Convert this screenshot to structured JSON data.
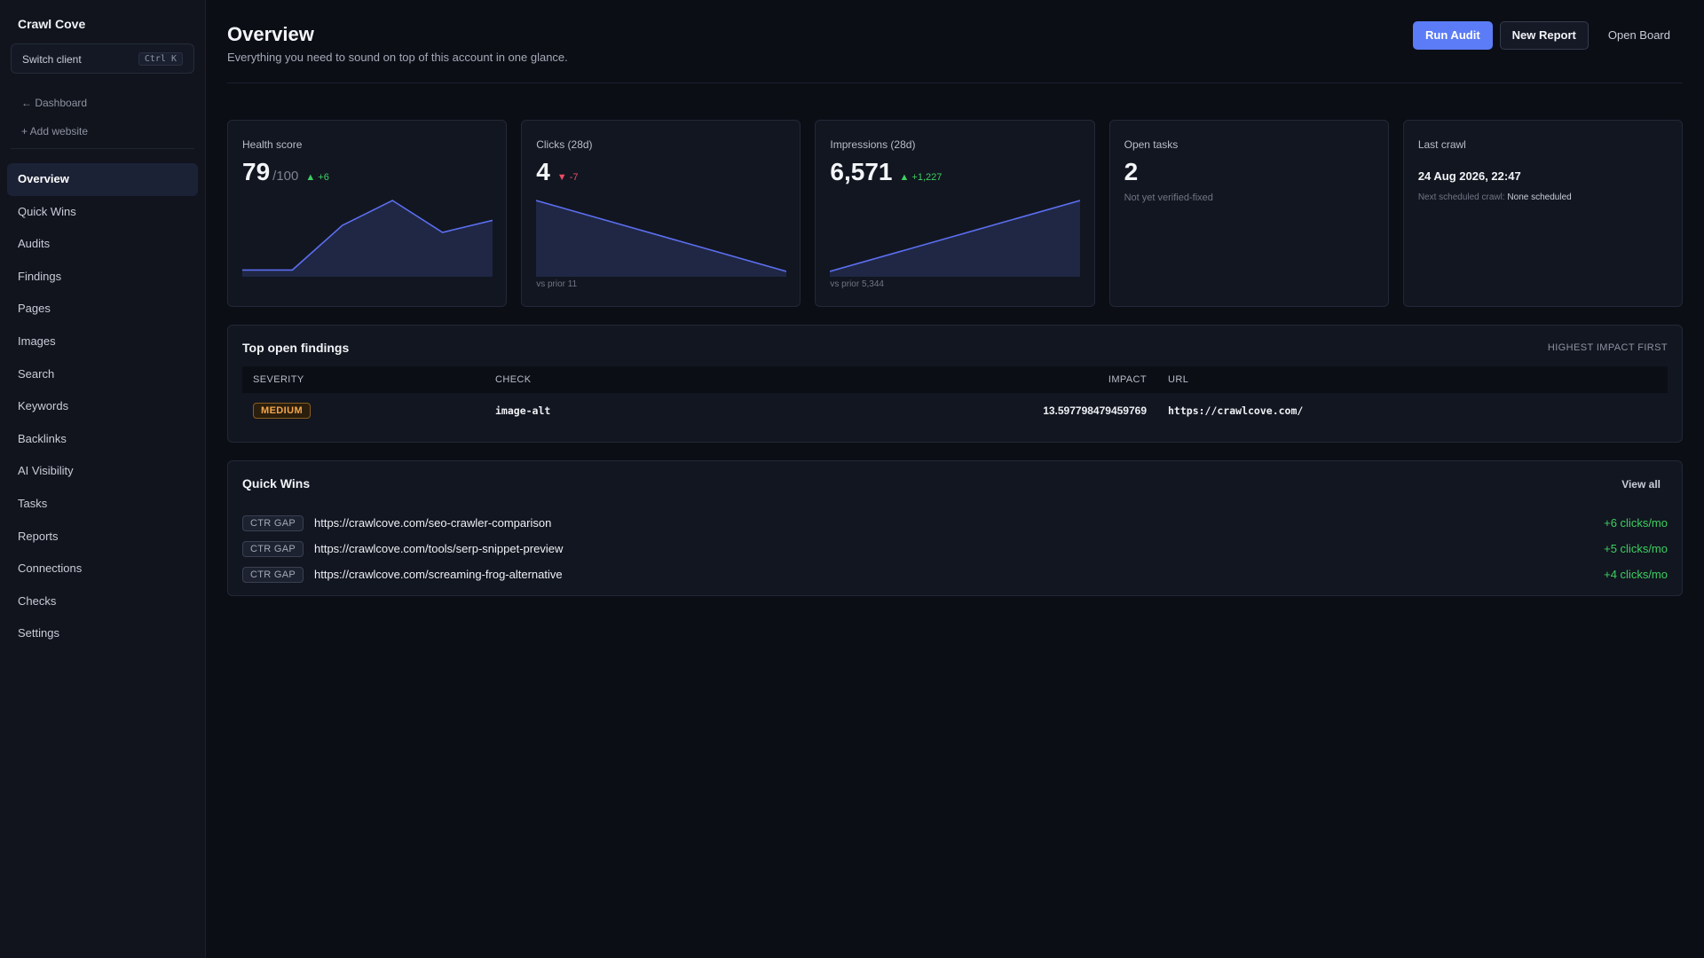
{
  "sidebar": {
    "brand": "Crawl Cove",
    "switch_label": "Switch client",
    "switch_shortcut": "Ctrl K",
    "back_link": "← Dashboard",
    "add_link": "+ Add website",
    "active_item": "Overview",
    "items": [
      {
        "label": "Overview"
      },
      {
        "label": "Quick Wins"
      },
      {
        "label": "Audits"
      },
      {
        "label": "Findings"
      },
      {
        "label": "Pages"
      },
      {
        "label": "Images"
      },
      {
        "label": "Search"
      },
      {
        "label": "Keywords"
      },
      {
        "label": "Backlinks"
      },
      {
        "label": "AI Visibility"
      },
      {
        "label": "Tasks"
      },
      {
        "label": "Reports"
      },
      {
        "label": "Connections"
      },
      {
        "label": "Checks"
      },
      {
        "label": "Settings"
      }
    ]
  },
  "header": {
    "title": "Overview",
    "subtitle": "Everything you need to sound on top of this account in one glance.",
    "buttons": {
      "run_audit": "Run Audit",
      "new_report": "New Report",
      "open_board": "Open Board"
    }
  },
  "cards": {
    "health": {
      "label": "Health score",
      "value": "79",
      "suffix": "/100",
      "delta": "▲ +6",
      "spark": [
        0.02,
        0.02,
        0.65,
        1.0,
        0.55,
        0.72
      ]
    },
    "clicks": {
      "label": "Clicks (28d)",
      "value": "4",
      "delta": "▼ -7",
      "foot": "vs prior 11",
      "spark": [
        1.0,
        0.0
      ]
    },
    "impressions": {
      "label": "Impressions (28d)",
      "value": "6,571",
      "delta": "▲ +1,227",
      "foot": "vs prior 5,344",
      "spark": [
        0.0,
        1.0
      ]
    },
    "tasks": {
      "label": "Open tasks",
      "value": "2",
      "note": "Not yet verified-fixed"
    },
    "crawl": {
      "label": "Last crawl",
      "date": "24 Aug 2026, 22:47",
      "next_label": "Next scheduled crawl:",
      "next_value": "None scheduled"
    }
  },
  "colors": {
    "accent": "#5b7cf6",
    "spark_line": "#5b6ef0",
    "spark_fill": "#1f2744",
    "up": "#3ecf62",
    "down": "#ef4b63"
  },
  "findings": {
    "title": "Top open findings",
    "sort_label": "HIGHEST IMPACT FIRST",
    "columns": {
      "severity": "SEVERITY",
      "check": "CHECK",
      "impact": "IMPACT",
      "url": "URL"
    },
    "rows": [
      {
        "severity": "MEDIUM",
        "check": "image-alt",
        "impact": "13.597798479459769",
        "url": "https://crawlcove.com/"
      }
    ]
  },
  "quick_wins": {
    "title": "Quick Wins",
    "view_all": "View all",
    "rows": [
      {
        "badge": "CTR GAP",
        "url": "https://crawlcove.com/seo-crawler-comparison",
        "gain": "+6 clicks/mo"
      },
      {
        "badge": "CTR GAP",
        "url": "https://crawlcove.com/tools/serp-snippet-preview",
        "gain": "+5 clicks/mo"
      },
      {
        "badge": "CTR GAP",
        "url": "https://crawlcove.com/screaming-frog-alternative",
        "gain": "+4 clicks/mo"
      }
    ]
  }
}
